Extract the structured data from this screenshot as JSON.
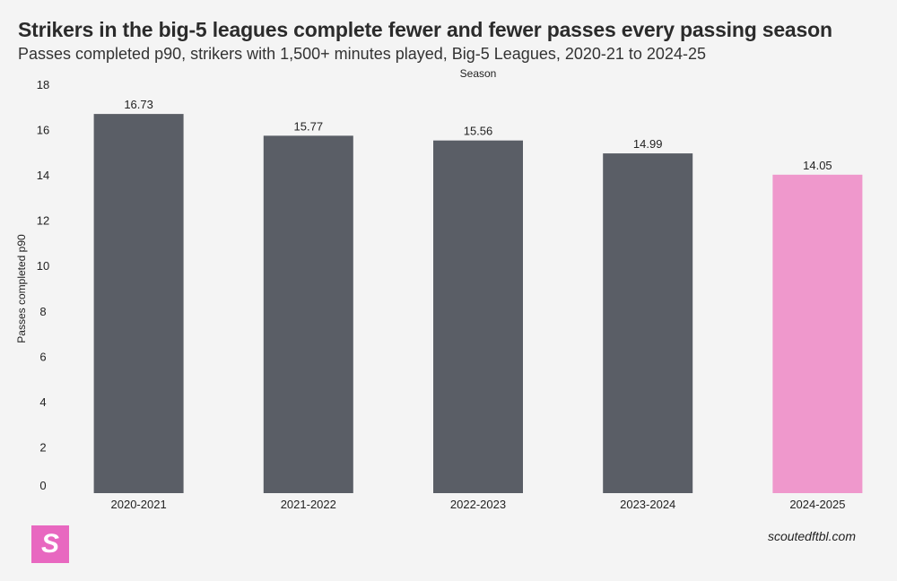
{
  "chart_data": {
    "type": "bar",
    "title": "Strikers in the big-5 leagues complete fewer and fewer passes every passing season",
    "subtitle": "Passes completed p90, strikers with 1,500+ minutes played, Big-5 Leagues, 2020-21 to 2024-25",
    "xlabel": "Season",
    "ylabel": "Passes completed p90",
    "categories": [
      "2020-2021",
      "2021-2022",
      "2022-2023",
      "2023-2024",
      "2024-2025"
    ],
    "values": [
      16.73,
      15.77,
      15.56,
      14.99,
      14.05
    ],
    "data_labels": [
      "16.73",
      "15.77",
      "15.56",
      "14.99",
      "14.05"
    ],
    "colors": [
      "#5a5e66",
      "#5a5e66",
      "#5a5e66",
      "#5a5e66",
      "#ef98cc"
    ],
    "ylim": [
      0,
      18
    ],
    "yticks": [
      0,
      2,
      4,
      6,
      8,
      10,
      12,
      14,
      16,
      18
    ],
    "grid": false,
    "legend": "none"
  },
  "branding": {
    "logo_letter": "S",
    "logo_color": "#e868c0",
    "credit": "scoutedftbl.com"
  }
}
